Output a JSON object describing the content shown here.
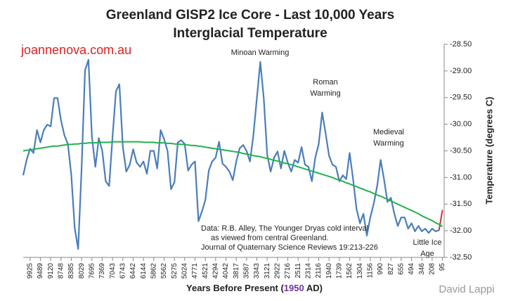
{
  "chart_data": {
    "type": "line",
    "title": [
      "Greenland GISP2 Ice Core - Last 10,000 Years",
      "Interglacial Temperature"
    ],
    "watermark": "joannenova.com.au",
    "credit": "David Lappi",
    "ylabel": "Temperature (degrees C)",
    "xlabel_parts": [
      "Years Before Present (",
      "1950",
      " AD)"
    ],
    "xlabel_highlight_color": "#7030a0",
    "ylim": [
      -32.5,
      -28.5
    ],
    "yticks": [
      {
        "value": -28.5,
        "label": "-28.50"
      },
      {
        "value": -29,
        "label": "-29.00"
      },
      {
        "value": -29.5,
        "label": "-29.50"
      },
      {
        "value": -30,
        "label": "-30.00"
      },
      {
        "value": -30.5,
        "label": "-30.50"
      },
      {
        "value": -31,
        "label": "-31.00"
      },
      {
        "value": -31.5,
        "label": "-31.50"
      },
      {
        "value": -32,
        "label": "-32.00"
      },
      {
        "value": -32.5,
        "label": "-32.50"
      }
    ],
    "y_axis_side": "right",
    "grid": false,
    "categories": [
      null,
      null,
      "9925",
      null,
      null,
      "9489",
      null,
      null,
      "9120",
      null,
      null,
      "8748",
      null,
      null,
      "8385",
      null,
      null,
      "8029",
      null,
      null,
      "7695",
      null,
      null,
      "7369",
      null,
      null,
      "7043",
      null,
      null,
      "6743",
      null,
      null,
      "6442",
      null,
      null,
      "6144",
      null,
      null,
      "5862",
      null,
      null,
      "5562",
      null,
      null,
      "5275",
      null,
      null,
      "5024",
      null,
      null,
      "4771",
      null,
      null,
      "4521",
      null,
      null,
      "4294",
      null,
      null,
      "4042",
      null,
      null,
      "3817",
      null,
      null,
      "3587",
      null,
      null,
      "3343",
      null,
      null,
      "3121",
      null,
      null,
      "2922",
      null,
      null,
      "2716",
      null,
      null,
      "2511",
      null,
      null,
      "2314",
      null,
      null,
      "2116",
      null,
      null,
      "1940",
      null,
      null,
      "1739",
      null,
      null,
      "1562",
      null,
      null,
      "1304",
      null,
      null,
      "1156",
      null,
      null,
      "990",
      null,
      null,
      "827",
      null,
      null,
      "655",
      null,
      null,
      "494",
      null,
      null,
      "346",
      null,
      null,
      "208",
      null,
      null,
      "95"
    ],
    "series": [
      {
        "color": "#4a7ebb",
        "values": [
          -30.96,
          -30.67,
          -30.46,
          -30.54,
          -30.11,
          -30.34,
          -30.11,
          -30.01,
          -30.04,
          -29.51,
          -29.51,
          -29.93,
          -30.21,
          -30.37,
          -30.96,
          -31.95,
          -32.34,
          -30.83,
          -28.99,
          -28.79,
          -30.24,
          -30.8,
          -30.26,
          -30.5,
          -31.07,
          -31.16,
          -30.24,
          -29.38,
          -29.25,
          -30.43,
          -30.89,
          -30.76,
          -30.47,
          -30.72,
          -30.8,
          -30.7,
          -30.93,
          -30.5,
          -30.5,
          -30.83,
          -30.11,
          -30.28,
          -30.5,
          -31.22,
          -31.09,
          -30.34,
          -30.3,
          -30.37,
          -30.87,
          -30.76,
          -30.7,
          -31.82,
          -31.64,
          -31.42,
          -30.87,
          -30.7,
          -30.63,
          -30.33,
          -30.74,
          -30.8,
          -30.89,
          -31.05,
          -30.7,
          -30.45,
          -30.39,
          -30.5,
          -30.7,
          -30.2,
          -29.51,
          -28.83,
          -29.51,
          -30.57,
          -30.89,
          -30.63,
          -30.51,
          -30.83,
          -30.5,
          -30.72,
          -30.89,
          -30.67,
          -30.72,
          -30.43,
          -30.76,
          -30.8,
          -31.07,
          -30.63,
          -30.37,
          -29.78,
          -30.17,
          -30.59,
          -30.76,
          -30.8,
          -31.07,
          -30.96,
          -31.03,
          -30.54,
          -31.03,
          -31.59,
          -31.86,
          -31.68,
          -32.09,
          -31.75,
          -31.49,
          -31.16,
          -30.67,
          -31.03,
          -31.46,
          -31.38,
          -31.68,
          -31.91,
          -31.75,
          -31.75,
          -31.96,
          -31.86,
          -32.01,
          -31.91,
          -32.01,
          -31.96,
          -32.04,
          -31.96,
          -32.01,
          -31.99,
          null
        ]
      },
      {
        "color": "#c0392b",
        "values": [
          null,
          null,
          null,
          null,
          null,
          null,
          null,
          null,
          null,
          null,
          null,
          null,
          null,
          null,
          null,
          null,
          null,
          null,
          null,
          null,
          null,
          null,
          null,
          null,
          null,
          null,
          null,
          null,
          null,
          null,
          null,
          null,
          null,
          null,
          null,
          null,
          null,
          null,
          null,
          null,
          null,
          null,
          null,
          null,
          null,
          null,
          null,
          null,
          null,
          null,
          null,
          null,
          null,
          null,
          null,
          null,
          null,
          null,
          null,
          null,
          null,
          null,
          null,
          null,
          null,
          null,
          null,
          null,
          null,
          null,
          null,
          null,
          null,
          null,
          null,
          null,
          null,
          null,
          null,
          null,
          null,
          null,
          null,
          null,
          null,
          null,
          null,
          null,
          null,
          null,
          null,
          null,
          null,
          null,
          null,
          null,
          null,
          null,
          null,
          null,
          null,
          null,
          null,
          null,
          null,
          null,
          null,
          null,
          null,
          null,
          null,
          null,
          null,
          null,
          null,
          null,
          null,
          null,
          null,
          null,
          null,
          -31.99,
          -31.61
        ]
      },
      {
        "color": "#22b14c",
        "values": [
          -30.5,
          -30.49,
          -30.48,
          -30.47,
          -30.46,
          -30.45,
          -30.44,
          -30.43,
          -30.42,
          -30.41,
          -30.41,
          -30.4,
          -30.39,
          -30.38,
          -30.38,
          -30.37,
          -30.37,
          -30.36,
          -30.36,
          -30.35,
          -30.35,
          -30.35,
          -30.34,
          -30.34,
          -30.34,
          -30.34,
          -30.33,
          -30.33,
          -30.33,
          -30.33,
          -30.33,
          -30.33,
          -30.33,
          -30.33,
          -30.33,
          -30.34,
          -30.34,
          -30.34,
          -30.34,
          -30.35,
          -30.35,
          -30.35,
          -30.36,
          -30.36,
          -30.37,
          -30.37,
          -30.38,
          -30.38,
          -30.39,
          -30.4,
          -30.4,
          -30.41,
          -30.42,
          -30.43,
          -30.44,
          -30.45,
          -30.46,
          -30.47,
          -30.48,
          -30.49,
          -30.5,
          -30.51,
          -30.52,
          -30.53,
          -30.55,
          -30.56,
          -30.57,
          -30.59,
          -30.6,
          -30.61,
          -30.63,
          -30.64,
          -30.66,
          -30.68,
          -30.69,
          -30.71,
          -30.73,
          -30.74,
          -30.76,
          -30.78,
          -30.8,
          -30.82,
          -30.84,
          -30.86,
          -30.88,
          -30.9,
          -30.92,
          -30.94,
          -30.96,
          -30.98,
          -31.0,
          -31.03,
          -31.05,
          -31.07,
          -31.1,
          -31.12,
          -31.15,
          -31.17,
          -31.2,
          -31.22,
          -31.25,
          -31.27,
          -31.3,
          -31.33,
          -31.35,
          -31.38,
          -31.41,
          -31.44,
          -31.47,
          -31.5,
          -31.53,
          -31.56,
          -31.59,
          -31.62,
          -31.65,
          -31.68,
          -31.72,
          -31.75,
          -31.78,
          -31.81,
          -31.85,
          -31.88,
          -31.92
        ]
      }
    ],
    "annotations": [
      [
        "Minoan Warming"
      ],
      [
        "Roman",
        "Warming"
      ],
      [
        "Medieval",
        "Warming"
      ],
      [
        "Little Ice",
        "Age"
      ],
      [
        "Data: R.B. Alley,  The Younger Dryas cold interval",
        "as viewed from central Greenland.",
        "Journal of Quaternary  Science Reviews 19:213-226"
      ]
    ]
  }
}
